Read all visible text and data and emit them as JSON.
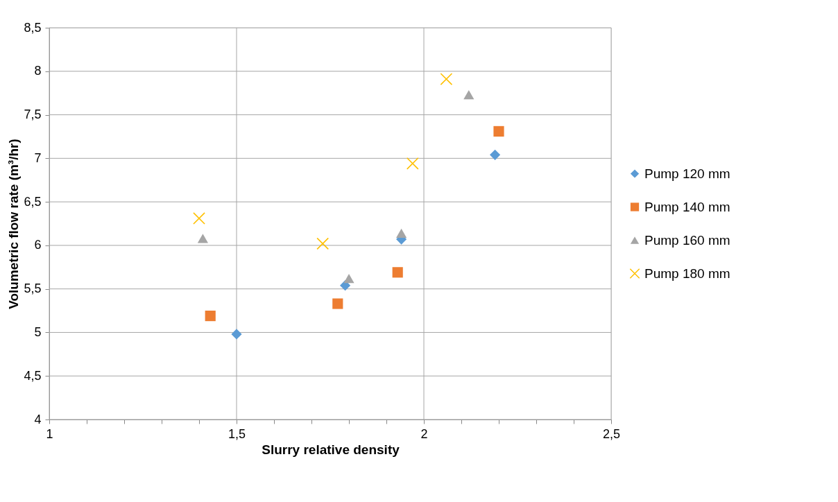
{
  "chart_data": {
    "type": "scatter",
    "xlabel": "Slurry relative density",
    "ylabel": "Volumetric flow rate (m³/hr)",
    "xlim": [
      1,
      2.5
    ],
    "ylim": [
      4,
      8.5
    ],
    "xticks": [
      {
        "value": 1,
        "label": "1"
      },
      {
        "value": 1.1,
        "label": null
      },
      {
        "value": 1.2,
        "label": null
      },
      {
        "value": 1.3,
        "label": null
      },
      {
        "value": 1.4,
        "label": null
      },
      {
        "value": 1.5,
        "label": "1,5"
      },
      {
        "value": 1.6,
        "label": null
      },
      {
        "value": 1.7,
        "label": null
      },
      {
        "value": 1.8,
        "label": null
      },
      {
        "value": 1.9,
        "label": null
      },
      {
        "value": 2,
        "label": "2"
      },
      {
        "value": 2.1,
        "label": null
      },
      {
        "value": 2.2,
        "label": null
      },
      {
        "value": 2.3,
        "label": null
      },
      {
        "value": 2.4,
        "label": null
      },
      {
        "value": 2.5,
        "label": "2,5"
      }
    ],
    "yticks": [
      {
        "value": 4,
        "label": "4"
      },
      {
        "value": 4.5,
        "label": "4,5"
      },
      {
        "value": 5,
        "label": "5"
      },
      {
        "value": 5.5,
        "label": "5,5"
      },
      {
        "value": 6,
        "label": "6"
      },
      {
        "value": 6.5,
        "label": "6,5"
      },
      {
        "value": 7,
        "label": "7"
      },
      {
        "value": 7.5,
        "label": "7,5"
      },
      {
        "value": 8,
        "label": "8"
      },
      {
        "value": 8.5,
        "label": "8,5"
      }
    ],
    "grid": true,
    "legend": "right",
    "series": [
      {
        "name": "Pump 120 mm",
        "color": "#5b9bd5",
        "marker": "diamond",
        "x": [
          1.5,
          1.79,
          1.94,
          2.19
        ],
        "values": [
          4.98,
          5.54,
          6.07,
          7.04
        ]
      },
      {
        "name": "Pump 140 mm",
        "color": "#ed7d31",
        "marker": "square",
        "x": [
          1.43,
          1.77,
          1.93,
          2.2
        ],
        "values": [
          5.19,
          5.33,
          5.69,
          7.31
        ]
      },
      {
        "name": "Pump 160 mm",
        "color": "#a5a5a5",
        "marker": "triangle",
        "x": [
          1.41,
          1.8,
          1.94,
          2.12
        ],
        "values": [
          6.08,
          5.62,
          6.14,
          7.73
        ]
      },
      {
        "name": "Pump 180 mm",
        "color": "#ffc000",
        "marker": "cross",
        "x": [
          1.4,
          1.73,
          1.97,
          2.06
        ],
        "values": [
          6.31,
          6.02,
          6.94,
          7.91
        ]
      }
    ]
  }
}
